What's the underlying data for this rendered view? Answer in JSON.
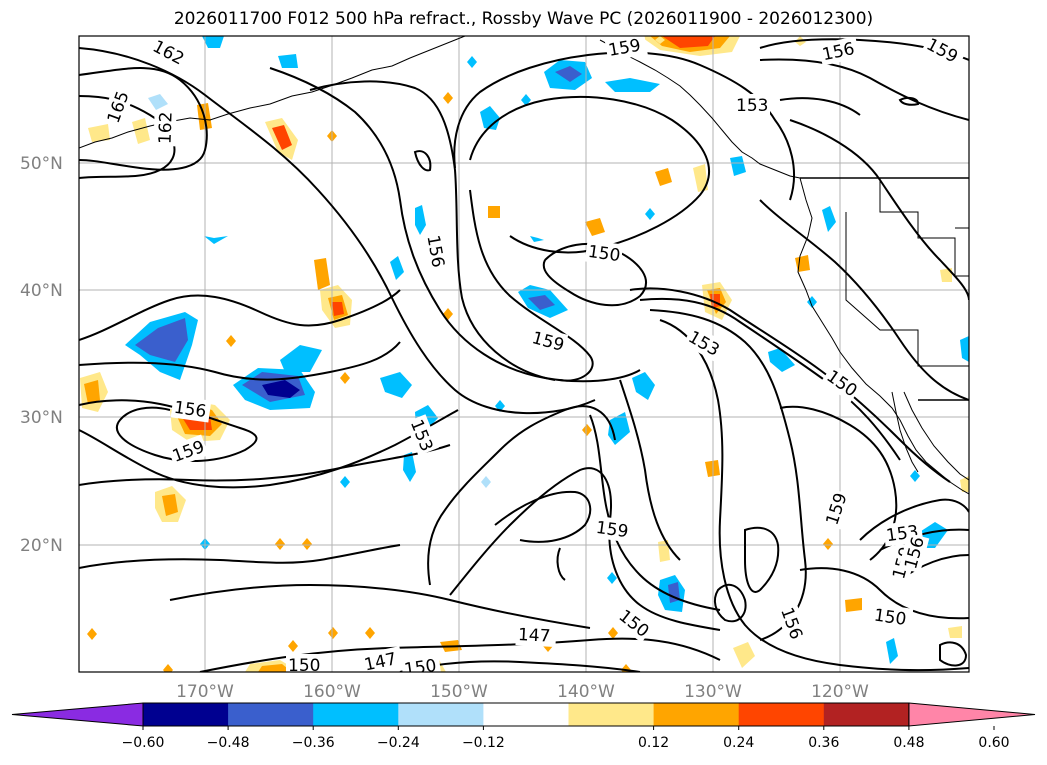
{
  "title": "2026011700 F012 500 hPa refract., Rossby Wave PC (2026011900 - 2026012300)",
  "lat_labels": [
    "50°N",
    "40°N",
    "30°N",
    "20°N"
  ],
  "lon_labels": [
    "170°W",
    "160°W",
    "150°W",
    "140°W",
    "130°W",
    "120°W"
  ],
  "contour_labels": [
    "162",
    "165",
    "162",
    "159",
    "156",
    "153",
    "150",
    "156",
    "159",
    "153",
    "159",
    "150",
    "153",
    "150",
    "159",
    "153",
    "159",
    "159",
    "156",
    "159",
    "156",
    "150",
    "147",
    "150",
    "147",
    "150",
    "156",
    "159"
  ],
  "colorbar": {
    "ticks": [
      "−0.60",
      "−0.48",
      "−0.36",
      "−0.24",
      "−0.12",
      "0.12",
      "0.24",
      "0.36",
      "0.48",
      "0.60"
    ],
    "colors": [
      "#8a2be2",
      "#000090",
      "#3a5fcd",
      "#00bfff",
      "#b0e0fa",
      "#ffffff",
      "#ffe88a",
      "#ffa500",
      "#ff4500",
      "#b22222",
      "#ff85a8"
    ]
  }
}
